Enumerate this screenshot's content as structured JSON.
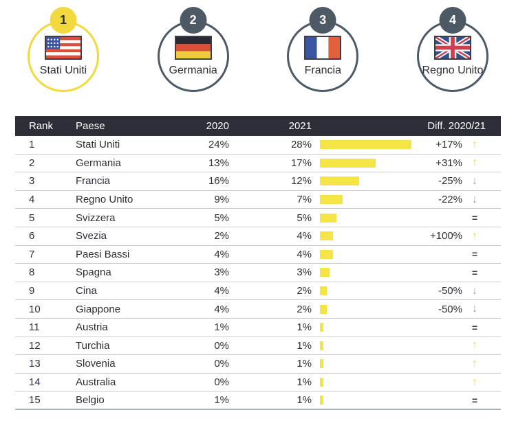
{
  "top_ranking": {
    "items": [
      {
        "rank": "1",
        "country": "Stati Uniti",
        "flag": "us",
        "flag_icon": "us-flag-icon",
        "highlight": true
      },
      {
        "rank": "2",
        "country": "Germania",
        "flag": "de",
        "flag_icon": "germany-flag-icon",
        "highlight": false
      },
      {
        "rank": "3",
        "country": "Francia",
        "flag": "fr",
        "flag_icon": "france-flag-icon",
        "highlight": false
      },
      {
        "rank": "4",
        "country": "Regno Unito",
        "flag": "uk",
        "flag_icon": "uk-flag-icon",
        "highlight": false
      }
    ]
  },
  "table": {
    "headers": {
      "rank": "Rank",
      "country": "Paese",
      "y2020": "2020",
      "y2021": "2021",
      "diff": "Diff. 2020/21"
    },
    "rows": [
      {
        "rank": "1",
        "country": "Stati Uniti",
        "y2020": "24%",
        "y2021": "28%",
        "bar": 28,
        "diff": "+17%",
        "trend": "up"
      },
      {
        "rank": "2",
        "country": "Germania",
        "y2020": "13%",
        "y2021": "17%",
        "bar": 17,
        "diff": "+31%",
        "trend": "up"
      },
      {
        "rank": "3",
        "country": "Francia",
        "y2020": "16%",
        "y2021": "12%",
        "bar": 12,
        "diff": "-25%",
        "trend": "down"
      },
      {
        "rank": "4",
        "country": "Regno Unito",
        "y2020": "9%",
        "y2021": "7%",
        "bar": 7,
        "diff": "-22%",
        "trend": "down"
      },
      {
        "rank": "5",
        "country": "Svizzera",
        "y2020": "5%",
        "y2021": "5%",
        "bar": 5,
        "diff": "",
        "trend": "equal"
      },
      {
        "rank": "6",
        "country": "Svezia",
        "y2020": "2%",
        "y2021": "4%",
        "bar": 4,
        "diff": "+100%",
        "trend": "up"
      },
      {
        "rank": "7",
        "country": "Paesi Bassi",
        "y2020": "4%",
        "y2021": "4%",
        "bar": 4,
        "diff": "",
        "trend": "equal"
      },
      {
        "rank": "8",
        "country": "Spagna",
        "y2020": "3%",
        "y2021": "3%",
        "bar": 3,
        "diff": "",
        "trend": "equal"
      },
      {
        "rank": "9",
        "country": "Cina",
        "y2020": "4%",
        "y2021": "2%",
        "bar": 2,
        "diff": "-50%",
        "trend": "down"
      },
      {
        "rank": "10",
        "country": "Giappone",
        "y2020": "4%",
        "y2021": "2%",
        "bar": 2,
        "diff": "-50%",
        "trend": "down"
      },
      {
        "rank": "11",
        "country": "Austria",
        "y2020": "1%",
        "y2021": "1%",
        "bar": 1,
        "diff": "",
        "trend": "equal"
      },
      {
        "rank": "12",
        "country": "Turchia",
        "y2020": "0%",
        "y2021": "1%",
        "bar": 1,
        "diff": "",
        "trend": "up"
      },
      {
        "rank": "13",
        "country": "Slovenia",
        "y2020": "0%",
        "y2021": "1%",
        "bar": 1,
        "diff": "",
        "trend": "up"
      },
      {
        "rank": "14",
        "country": "Australia",
        "y2020": "0%",
        "y2021": "1%",
        "bar": 1,
        "diff": "",
        "trend": "up"
      },
      {
        "rank": "15",
        "country": "Belgio",
        "y2020": "1%",
        "y2021": "1%",
        "bar": 1,
        "diff": "",
        "trend": "equal"
      }
    ]
  },
  "icons": {
    "up": "↑",
    "down": "↓",
    "equal": "="
  },
  "colors": {
    "header_bg": "#2E2E38",
    "accent_yellow": "#F2D93D",
    "bar_yellow": "#F5E445",
    "slate": "#4D5A66",
    "down_gray": "#9BA0A5",
    "row_line": "#C9C9C9"
  },
  "chart_data": {
    "type": "table",
    "columns": [
      "Rank",
      "Paese",
      "2020",
      "2021",
      "Diff. 2020/21"
    ],
    "categories": [
      "Stati Uniti",
      "Germania",
      "Francia",
      "Regno Unito",
      "Svizzera",
      "Svezia",
      "Paesi Bassi",
      "Spagna",
      "Cina",
      "Giappone",
      "Austria",
      "Turchia",
      "Slovenia",
      "Australia",
      "Belgio"
    ],
    "series": [
      {
        "name": "2020",
        "values": [
          24,
          13,
          16,
          9,
          5,
          2,
          4,
          3,
          4,
          4,
          1,
          0,
          0,
          0,
          1
        ]
      },
      {
        "name": "2021",
        "values": [
          28,
          17,
          12,
          7,
          5,
          4,
          4,
          3,
          2,
          2,
          1,
          1,
          1,
          1,
          1
        ]
      }
    ],
    "diff_labels": [
      "+17%",
      "+31%",
      "-25%",
      "-22%",
      "=",
      "+100%",
      "=",
      "=",
      "-50%",
      "-50%",
      "=",
      "↑",
      "↑",
      "↑",
      "="
    ],
    "bar_unit": "percent",
    "bar_color": "#F5E445",
    "top4_podium": [
      "Stati Uniti",
      "Germania",
      "Francia",
      "Regno Unito"
    ]
  }
}
